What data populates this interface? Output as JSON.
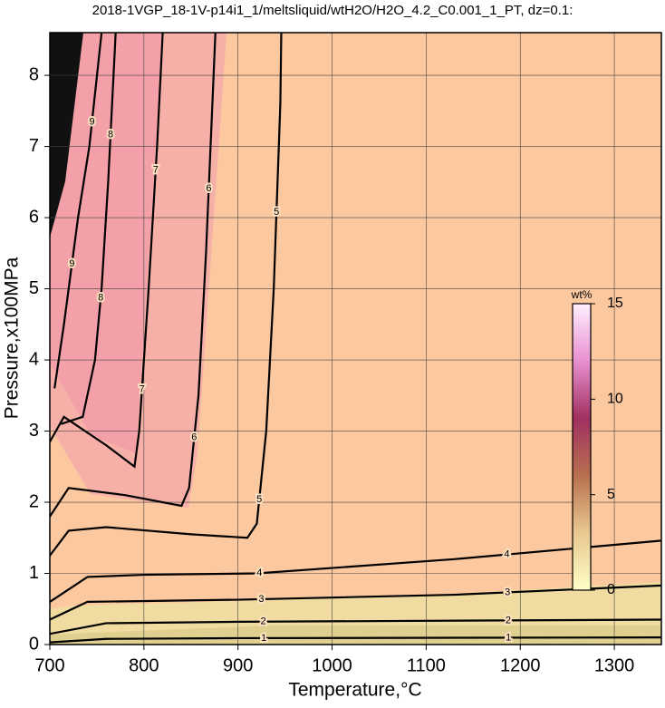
{
  "chart_data": {
    "type": "contour",
    "title": "2018-1VGP_18-1V-p14i1_1/meltsliquid/wtH2O/H2O_4.2_C0.001_1_PT, dz=0.1:",
    "x_label": "Temperature,°C",
    "y_label": "Pressure,x100MPa",
    "xlim": [
      700,
      1350
    ],
    "ylim": [
      0,
      8.6
    ],
    "xticks": [
      700,
      800,
      900,
      1000,
      1100,
      1200,
      1300
    ],
    "yticks": [
      0,
      1,
      2,
      3,
      4,
      5,
      6,
      7,
      8
    ],
    "grid": true,
    "line_color": "#000000",
    "contours": [
      {
        "level": 1,
        "x": [
          700,
          760,
          900,
          1350
        ],
        "y": [
          0.03,
          0.08,
          0.09,
          0.1
        ]
      },
      {
        "level": 2,
        "x": [
          700,
          760,
          900,
          1350
        ],
        "y": [
          0.15,
          0.3,
          0.32,
          0.35
        ]
      },
      {
        "level": 3,
        "x": [
          700,
          740,
          900,
          1130,
          1350
        ],
        "y": [
          0.35,
          0.6,
          0.63,
          0.7,
          0.83
        ]
      },
      {
        "level": 4,
        "x": [
          700,
          740,
          800,
          920,
          1130,
          1350
        ],
        "y": [
          0.6,
          0.95,
          0.98,
          1.0,
          1.2,
          1.46
        ]
      },
      {
        "level": 5,
        "x": [
          700,
          720,
          760,
          850,
          910,
          920,
          930,
          938,
          945,
          946
        ],
        "y": [
          1.25,
          1.6,
          1.65,
          1.55,
          1.5,
          1.7,
          3,
          5,
          7.6,
          8.6
        ]
      },
      {
        "level": 6,
        "x": [
          700,
          720,
          780,
          840,
          848,
          858,
          866,
          876
        ],
        "y": [
          1.8,
          2.2,
          2.1,
          1.95,
          2.2,
          3.5,
          5.5,
          8.6
        ]
      },
      {
        "level": 7,
        "x": [
          700,
          715,
          760,
          790,
          795,
          805,
          814,
          820
        ],
        "y": [
          2.85,
          3.2,
          2.8,
          2.5,
          3,
          5,
          7,
          8.6
        ]
      },
      {
        "level": 8,
        "x": [
          712,
          735,
          748,
          755,
          762,
          770
        ],
        "y": [
          3.1,
          3.2,
          4,
          5,
          6.5,
          8.6
        ]
      },
      {
        "level": 9,
        "x": [
          705,
          715,
          720,
          730,
          742,
          755
        ],
        "y": [
          3.6,
          4.5,
          5,
          6,
          7,
          8.6
        ]
      }
    ],
    "colorbar": {
      "label": "wt%",
      "lim": [
        0,
        15
      ],
      "ticks": [
        0,
        5,
        10,
        15
      ],
      "colors": [
        "#ffffc8",
        "#e8c890",
        "#b87050",
        "#a03060",
        "#e890d0",
        "#fff0ff"
      ]
    }
  }
}
